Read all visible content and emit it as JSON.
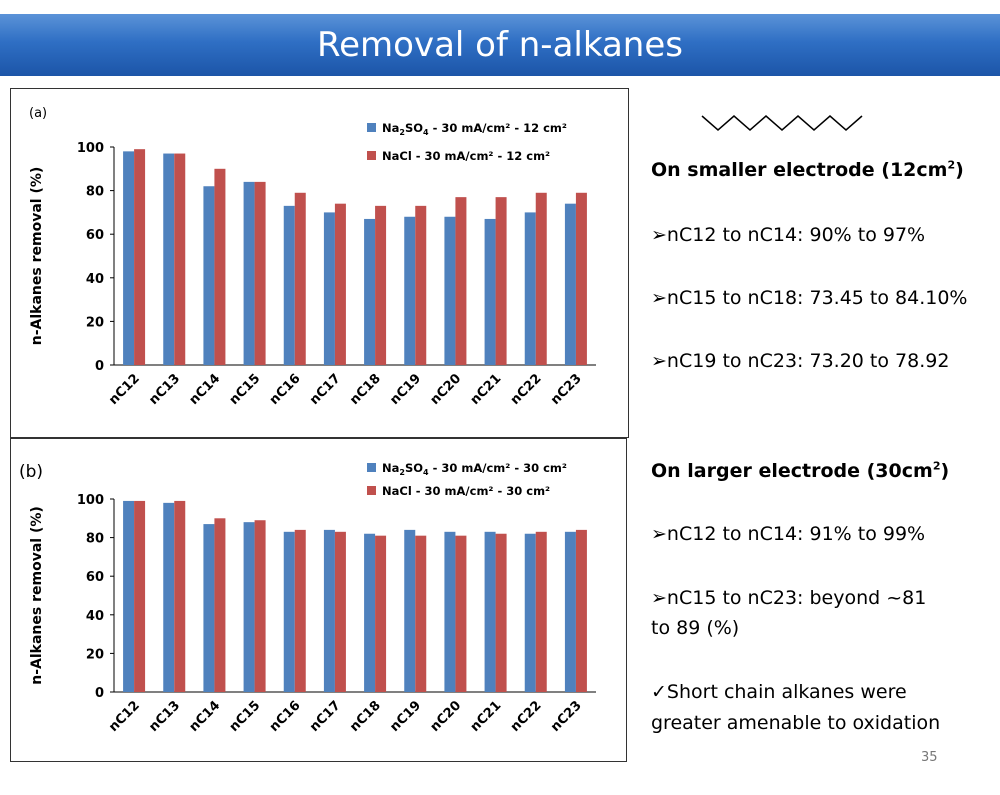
{
  "slide": {
    "title": "Removal of n-alkanes",
    "page_number": "35"
  },
  "right_panel": {
    "smaller_heading_pre": "On  smaller electrode (12cm",
    "smaller_heading_sup": "2",
    "smaller_heading_post": ")",
    "smaller_items": [
      "➢nC12 to nC14: 90% to 97%",
      "➢nC15 to nC18: 73.45 to 84.10%",
      "➢nC19 to nC23: 73.20 to 78.92"
    ],
    "larger_heading_pre": "On  larger electrode (30cm",
    "larger_heading_sup": "2",
    "larger_heading_post": ")",
    "larger_items": [
      "➢nC12 to nC14: 91% to 99%",
      "➢nC15 to nC23:  beyond ~81",
      "to 89 (%)"
    ],
    "note_lines": [
      "✓Short chain alkanes were",
      "greater amenable to oxidation"
    ]
  },
  "chart_data": [
    {
      "type": "bar",
      "panel_label": "(a)",
      "categories": [
        "nC12",
        "nC13",
        "nC14",
        "nC15",
        "nC16",
        "nC17",
        "nC18",
        "nC19",
        "nC20",
        "nC21",
        "nC22",
        "nC23"
      ],
      "ylabel": "n-Alkanes removal (%)",
      "ylim": [
        0,
        100
      ],
      "yticks": [
        "0",
        "20",
        "40",
        "60",
        "80",
        "100"
      ],
      "legend_position": "top-right",
      "series": [
        {
          "name_main": "Na",
          "name_sub1": "2",
          "name_mid": "SO",
          "name_sub2": "4",
          "name_rest": " - 30 mA/cm² - 12 cm²",
          "color": "#4f81bd",
          "values": [
            98,
            97,
            82,
            84,
            73,
            70,
            67,
            68,
            68,
            67,
            70,
            74
          ]
        },
        {
          "name_main": "NaCl - 30 mA/cm² - 12 cm²",
          "color": "#c0504d",
          "values": [
            99,
            97,
            90,
            84,
            79,
            74,
            73,
            73,
            77,
            77,
            79,
            79
          ]
        }
      ]
    },
    {
      "type": "bar",
      "panel_label": "(b)",
      "categories": [
        "nC12",
        "nC13",
        "nC14",
        "nC15",
        "nC16",
        "nC17",
        "nC18",
        "nC19",
        "nC20",
        "nC21",
        "nC22",
        "nC23"
      ],
      "ylabel": "n-Alkanes removal (%)",
      "ylim": [
        0,
        100
      ],
      "yticks": [
        "0",
        "20",
        "40",
        "60",
        "80",
        "100"
      ],
      "legend_position": "top-right",
      "series": [
        {
          "name_main": "Na",
          "name_sub1": "2",
          "name_mid": "SO",
          "name_sub2": "4",
          "name_rest": " - 30 mA/cm² - 30 cm²",
          "color": "#4f81bd",
          "values": [
            99,
            98,
            87,
            88,
            83,
            84,
            82,
            84,
            83,
            83,
            82,
            83
          ]
        },
        {
          "name_main": "NaCl - 30 mA/cm² - 30 cm²",
          "color": "#c0504d",
          "values": [
            99,
            99,
            90,
            89,
            84,
            83,
            81,
            81,
            81,
            82,
            83,
            84
          ]
        }
      ]
    }
  ]
}
